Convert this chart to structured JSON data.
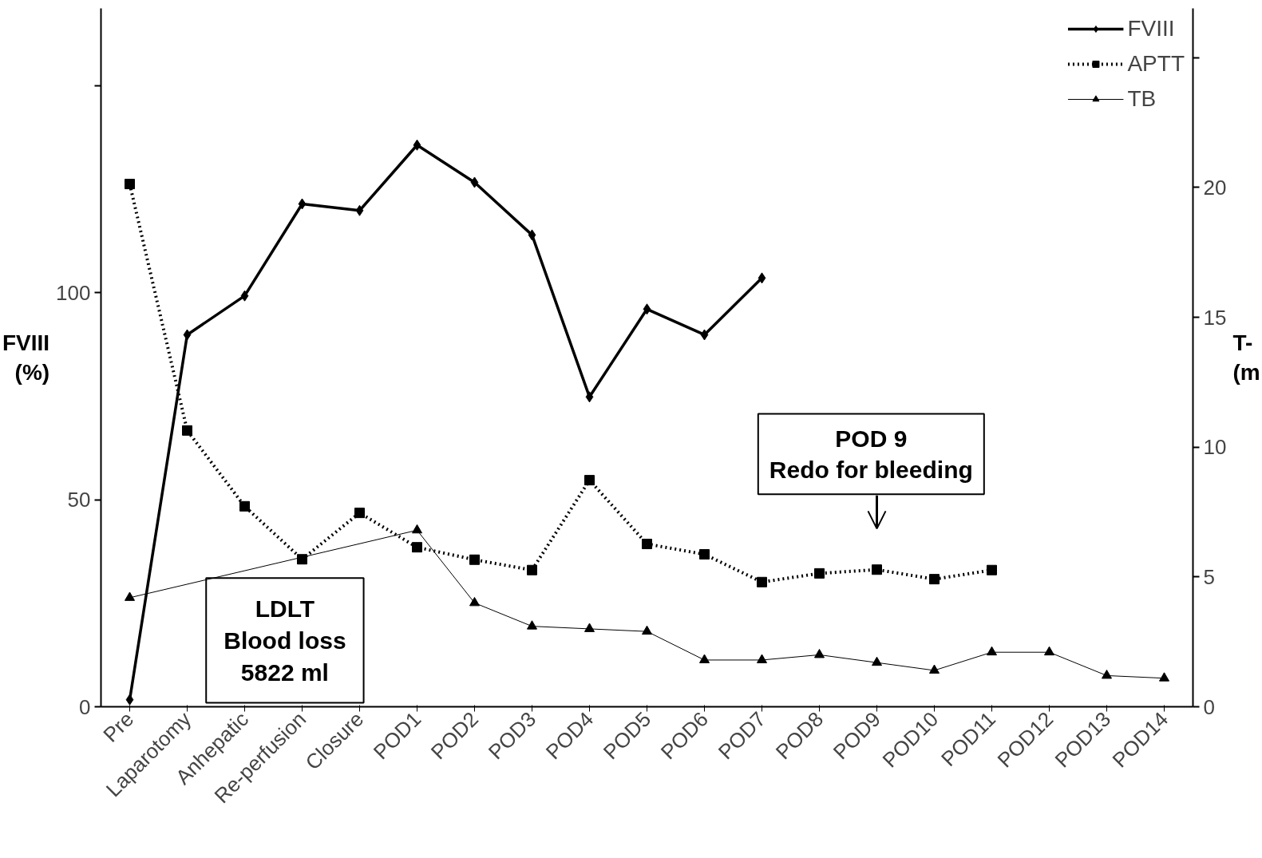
{
  "chart_data": {
    "type": "line",
    "categories": [
      "Pre",
      "Laparotomy",
      "Anhepatic",
      "Re-perfusion",
      "Closure",
      "POD1",
      "POD2",
      "POD3",
      "POD4",
      "POD5",
      "POD6",
      "POD7",
      "POD8",
      "POD9",
      "POD10",
      "POD11",
      "POD12",
      "POD13",
      "POD14"
    ],
    "ylabel": "FVIII\n(%)",
    "y2label": "T-\n(m",
    "ylim": [
      0,
      168.6
    ],
    "yticks": [
      0,
      50,
      100,
      {
        "value": 150,
        "label": null
      }
    ],
    "y2lim": [
      0,
      26.9
    ],
    "y2ticks": [
      0,
      5,
      10,
      15,
      20,
      {
        "value": 25,
        "label": null
      }
    ],
    "series": [
      {
        "name": "FVIII",
        "color": "#000000",
        "marker": "diamond",
        "line_style": "solid",
        "values": [
          1.7,
          89.8,
          99.2,
          121.4,
          119.8,
          135.6,
          126.6,
          113.9,
          74.8,
          96,
          89.8,
          103.5,
          null,
          null,
          null,
          null,
          null,
          null,
          null
        ]
      },
      {
        "name": "APTT",
        "color": "#000000",
        "marker": "square",
        "line_style": "dotted",
        "values": [
          126.2,
          66.7,
          48.4,
          35.6,
          46.8,
          38.5,
          35.5,
          33,
          54.7,
          39.3,
          36.8,
          30.1,
          32.2,
          33.1,
          30.8,
          33,
          null,
          null,
          null
        ]
      },
      {
        "name": "TB",
        "color": "#000000",
        "marker": "triangle",
        "line_style": "solid",
        "axis": "y2",
        "values": [
          4.2,
          null,
          null,
          null,
          null,
          6.8,
          4.0,
          3.1,
          3.0,
          2.9,
          1.8,
          1.8,
          2.0,
          1.7,
          1.4,
          2.1,
          2.1,
          1.2,
          1.1
        ]
      }
    ],
    "annotations": [
      "LDLT\nBlood loss\n5822 ml",
      "POD 9\nRedo for bleeding"
    ],
    "legend": "top right",
    "grid": false
  }
}
